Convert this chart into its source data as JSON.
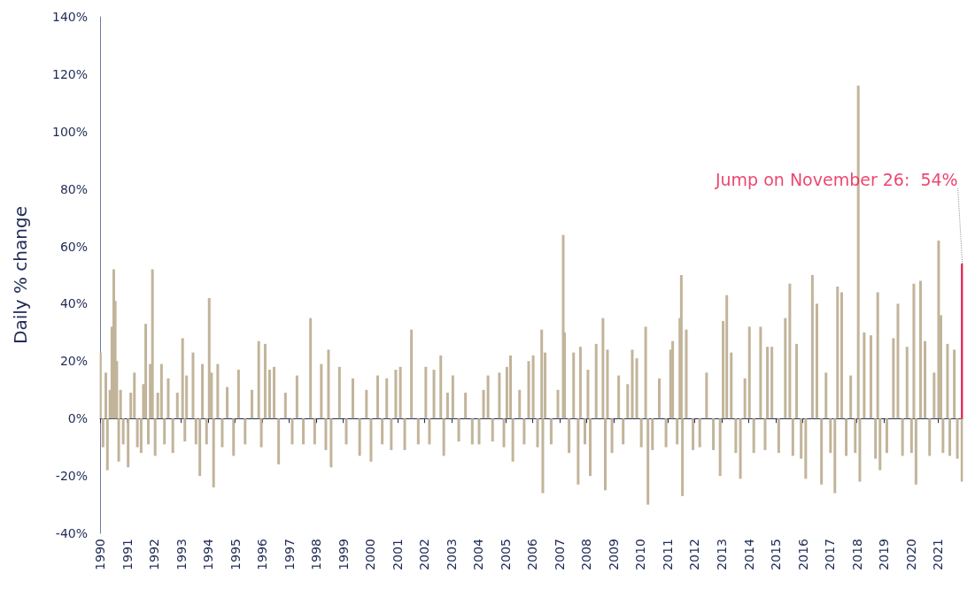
{
  "chart_data": {
    "type": "bar",
    "ylabel": "Daily % change",
    "x": [
      "1990-01-05",
      "1990-02-10",
      "1990-03-20",
      "1990-04-10",
      "1990-05-15",
      "1990-06-10",
      "1990-07-05",
      "1990-07-25",
      "1990-08-15",
      "1990-09-10",
      "1990-10-05",
      "1990-11-10",
      "1991-01-15",
      "1991-02-20",
      "1991-04-10",
      "1991-05-20",
      "1991-07-10",
      "1991-08-10",
      "1991-09-10",
      "1991-10-15",
      "1991-11-10",
      "1991-12-10",
      "1992-01-15",
      "1992-02-20",
      "1992-04-10",
      "1992-05-20",
      "1992-07-10",
      "1992-09-10",
      "1992-11-10",
      "1993-01-20",
      "1993-02-20",
      "1993-03-15",
      "1993-06-10",
      "1993-07-20",
      "1993-09-10",
      "1993-10-15",
      "1993-12-10",
      "1994-01-15",
      "1994-02-15",
      "1994-03-15",
      "1994-05-10",
      "1994-07-10",
      "1994-09-15",
      "1994-12-10",
      "1995-02-15",
      "1995-05-15",
      "1995-08-15",
      "1995-11-15",
      "1995-12-20",
      "1996-02-10",
      "1996-04-10",
      "1996-06-10",
      "1996-08-10",
      "1996-11-10",
      "1997-02-10",
      "1997-04-15",
      "1997-07-10",
      "1997-10-15",
      "1997-12-10",
      "1998-03-10",
      "1998-05-10",
      "1998-06-15",
      "1998-07-20",
      "1998-11-10",
      "1999-02-10",
      "1999-05-10",
      "1999-08-10",
      "1999-11-10",
      "2000-01-10",
      "2000-04-10",
      "2000-06-10",
      "2000-08-10",
      "2000-10-10",
      "2000-12-10",
      "2001-02-10",
      "2001-04-10",
      "2001-07-10",
      "2001-10-10",
      "2002-01-20",
      "2002-03-10",
      "2002-05-10",
      "2002-08-10",
      "2002-09-20",
      "2002-11-10",
      "2003-01-20",
      "2003-04-10",
      "2003-07-10",
      "2003-10-10",
      "2004-01-10",
      "2004-03-10",
      "2004-05-10",
      "2004-07-10",
      "2004-10-10",
      "2004-12-10",
      "2005-01-20",
      "2005-03-10",
      "2005-04-10",
      "2005-07-10",
      "2005-09-10",
      "2005-11-10",
      "2006-01-10",
      "2006-03-10",
      "2006-05-05",
      "2006-05-20",
      "2006-06-20",
      "2006-09-10",
      "2006-12-10",
      "2007-02-20",
      "2007-03-10",
      "2007-05-10",
      "2007-07-10",
      "2007-09-10",
      "2007-10-10",
      "2007-12-10",
      "2008-01-20",
      "2008-02-20",
      "2008-05-10",
      "2008-08-10",
      "2008-09-10",
      "2008-10-10",
      "2008-12-10",
      "2009-03-10",
      "2009-05-10",
      "2009-07-10",
      "2009-09-10",
      "2009-11-10",
      "2010-01-10",
      "2010-03-10",
      "2010-04-10",
      "2010-06-10",
      "2010-09-10",
      "2010-12-10",
      "2011-02-10",
      "2011-03-10",
      "2011-05-10",
      "2011-06-15",
      "2011-07-05",
      "2011-07-20",
      "2011-09-10",
      "2011-12-10",
      "2012-03-10",
      "2012-06-10",
      "2012-09-10",
      "2012-12-10",
      "2013-01-20",
      "2013-03-10",
      "2013-05-10",
      "2013-07-10",
      "2013-09-10",
      "2013-11-10",
      "2014-01-10",
      "2014-03-10",
      "2014-06-10",
      "2014-08-10",
      "2014-09-10",
      "2014-11-10",
      "2015-02-10",
      "2015-05-10",
      "2015-07-10",
      "2015-08-20",
      "2015-10-10",
      "2015-12-10",
      "2016-02-10",
      "2016-05-10",
      "2016-07-10",
      "2016-09-10",
      "2016-11-10",
      "2017-01-10",
      "2017-03-10",
      "2017-04-15",
      "2017-06-10",
      "2017-08-10",
      "2017-10-10",
      "2017-12-10",
      "2018-01-20",
      "2018-02-10",
      "2018-04-10",
      "2018-07-10",
      "2018-09-10",
      "2018-10-10",
      "2018-11-10",
      "2019-02-10",
      "2019-05-10",
      "2019-07-10",
      "2019-09-10",
      "2019-11-10",
      "2020-01-10",
      "2020-02-10",
      "2020-03-10",
      "2020-05-10",
      "2020-07-10",
      "2020-09-10",
      "2020-11-10",
      "2021-01-10",
      "2021-02-10",
      "2021-03-10",
      "2021-05-10",
      "2021-06-10",
      "2021-08-10",
      "2021-09-20",
      "2021-11-22"
    ],
    "series": [
      {
        "color": "#c2b49a",
        "values": [
          23,
          -10,
          16,
          -18,
          10,
          32,
          52,
          41,
          20,
          -15,
          10,
          -9,
          -17,
          9,
          16,
          -10,
          -12,
          12,
          33,
          -9,
          19,
          52,
          -13,
          9,
          19,
          -9,
          14,
          -12,
          9,
          28,
          -8,
          15,
          23,
          -9,
          -20,
          19,
          -9,
          42,
          16,
          -24,
          19,
          -10,
          11,
          -13,
          17,
          -9,
          10,
          27,
          -10,
          26,
          17,
          18,
          -16,
          9,
          -9,
          15,
          -9,
          35,
          -9,
          19,
          -11,
          24,
          -17,
          18,
          -9,
          14,
          -13,
          10,
          -15,
          15,
          -9,
          14,
          -11,
          17,
          18,
          -11,
          31,
          -9,
          18,
          -9,
          17,
          22,
          -13,
          9,
          15,
          -8,
          9,
          -9,
          -9,
          10,
          15,
          -8,
          16,
          -10,
          18,
          22,
          -15,
          10,
          -9,
          20,
          22,
          -10,
          31,
          -26,
          23,
          -9,
          10,
          64,
          30,
          -12,
          23,
          -23,
          25,
          -9,
          17,
          -20,
          26,
          35,
          -25,
          24,
          -12,
          15,
          -9,
          12,
          24,
          21,
          -10,
          32,
          -30,
          -11,
          14,
          -10,
          24,
          27,
          -9,
          35,
          50,
          -27,
          31,
          -11,
          -10,
          16,
          -11,
          -20,
          34,
          43,
          23,
          -12,
          -21,
          14,
          32,
          -12,
          32,
          -11,
          25,
          25,
          -12,
          35,
          47,
          -13,
          26,
          -14,
          -21,
          50,
          40,
          -23,
          16,
          -12,
          -26,
          46,
          44,
          -13,
          15,
          -12,
          116,
          -22,
          30,
          29,
          -14,
          44,
          -18,
          -12,
          28,
          40,
          -13,
          25,
          -12,
          47,
          -23,
          48,
          27,
          -13,
          16,
          62,
          36,
          -12,
          26,
          -13,
          24,
          -14,
          -22
        ]
      },
      {
        "color": "#e8174a",
        "x": [
          "2021-11-26"
        ],
        "values": [
          54
        ]
      }
    ],
    "xlim": [
      "1990-01-01",
      "2021-11-30"
    ],
    "xticks": [
      "1990",
      "1991",
      "1992",
      "1993",
      "1994",
      "1995",
      "1996",
      "1997",
      "1998",
      "1999",
      "2000",
      "2001",
      "2002",
      "2003",
      "2004",
      "2005",
      "2006",
      "2007",
      "2008",
      "2009",
      "2010",
      "2011",
      "2012",
      "2013",
      "2014",
      "2015",
      "2016",
      "2017",
      "2018",
      "2019",
      "2020",
      "2021"
    ],
    "ylim": [
      -40,
      140
    ],
    "yticks": [
      {
        "value": -40,
        "label": "-40%"
      },
      {
        "value": -20,
        "label": "-20%"
      },
      {
        "value": 0,
        "label": "0%"
      },
      {
        "value": 20,
        "label": "20%"
      },
      {
        "value": 40,
        "label": "40%"
      },
      {
        "value": 60,
        "label": "60%"
      },
      {
        "value": 80,
        "label": "80%"
      },
      {
        "value": 100,
        "label": "100%"
      },
      {
        "value": 120,
        "label": "120%"
      },
      {
        "value": 140,
        "label": "140%"
      }
    ],
    "annotations": [
      {
        "text": "Jump on November 26:  54%",
        "x": "2021-11-26",
        "y": 54
      }
    ],
    "grid": false
  }
}
